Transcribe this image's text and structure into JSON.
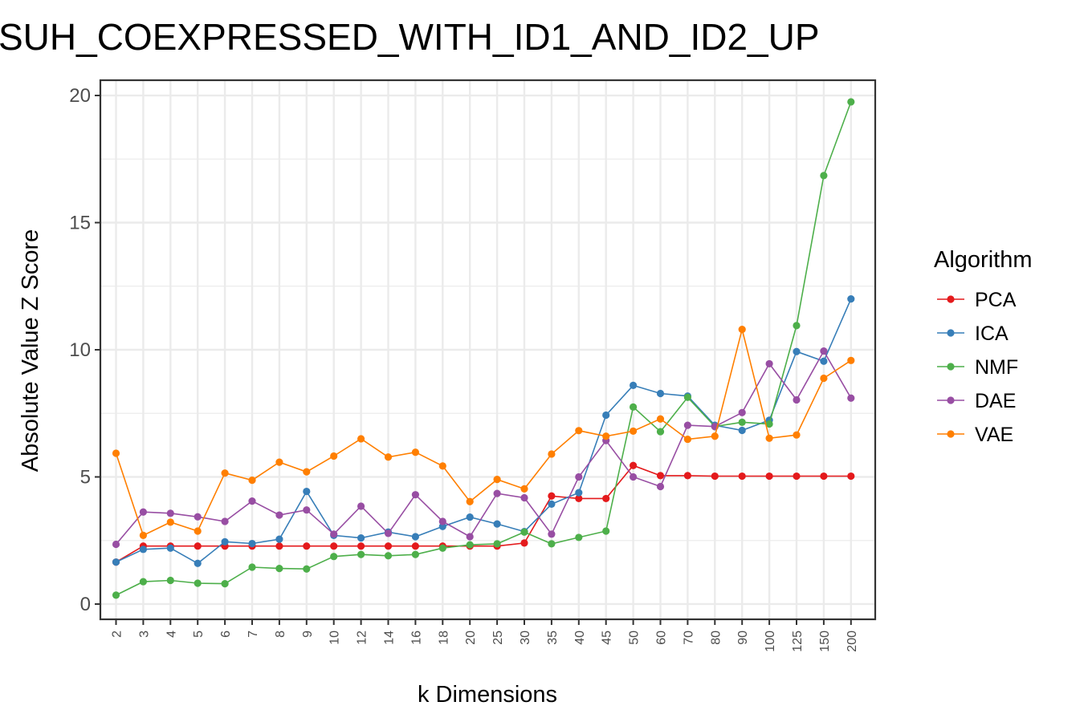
{
  "chart_data": {
    "type": "line",
    "title": "SUH_COEXPRESSED_WITH_ID1_AND_ID2_UP",
    "xlabel": "k Dimensions",
    "ylabel": "Absolute Value Z Score",
    "categories": [
      "2",
      "3",
      "4",
      "5",
      "6",
      "7",
      "8",
      "9",
      "10",
      "12",
      "14",
      "16",
      "18",
      "20",
      "25",
      "30",
      "35",
      "40",
      "45",
      "50",
      "60",
      "70",
      "80",
      "90",
      "100",
      "125",
      "150",
      "200"
    ],
    "ylim": [
      -0.6,
      20.6
    ],
    "yticks": [
      "0",
      "5",
      "10",
      "15",
      "20"
    ],
    "grid": true,
    "legend": {
      "title": "Algorithm",
      "position": "right"
    },
    "series": [
      {
        "name": "PCA",
        "color": "#E41A1C",
        "values": [
          1.65,
          2.28,
          2.28,
          2.28,
          2.28,
          2.28,
          2.28,
          2.28,
          2.28,
          2.28,
          2.28,
          2.28,
          2.28,
          2.28,
          2.28,
          2.4,
          4.25,
          4.15,
          4.15,
          5.45,
          5.05,
          5.05,
          5.03,
          5.03,
          5.03,
          5.03,
          5.03,
          5.03
        ]
      },
      {
        "name": "ICA",
        "color": "#377EB8",
        "values": [
          1.65,
          2.15,
          2.2,
          1.6,
          2.45,
          2.38,
          2.55,
          4.43,
          2.7,
          2.6,
          2.83,
          2.65,
          3.05,
          3.42,
          3.15,
          2.85,
          3.93,
          4.38,
          7.43,
          8.6,
          8.28,
          8.18,
          7.03,
          6.83,
          7.23,
          9.93,
          9.55,
          12.0
        ]
      },
      {
        "name": "NMF",
        "color": "#4DAF4A",
        "values": [
          0.35,
          0.88,
          0.93,
          0.82,
          0.8,
          1.45,
          1.4,
          1.38,
          1.87,
          1.95,
          1.9,
          1.95,
          2.2,
          2.33,
          2.37,
          2.83,
          2.37,
          2.62,
          2.87,
          7.75,
          6.78,
          8.13,
          6.98,
          7.15,
          7.08,
          10.95,
          16.85,
          19.75
        ]
      },
      {
        "name": "DAE",
        "color": "#984EA3",
        "values": [
          2.35,
          3.62,
          3.57,
          3.43,
          3.25,
          4.05,
          3.5,
          3.7,
          2.75,
          3.85,
          2.78,
          4.3,
          3.25,
          2.65,
          4.35,
          4.18,
          2.75,
          5.0,
          6.43,
          5.0,
          4.62,
          7.03,
          6.98,
          7.53,
          9.45,
          8.03,
          9.95,
          8.1
        ]
      },
      {
        "name": "VAE",
        "color": "#FF7F00",
        "values": [
          5.93,
          2.7,
          3.22,
          2.87,
          5.15,
          4.87,
          5.58,
          5.2,
          5.82,
          6.5,
          5.78,
          5.97,
          5.43,
          4.03,
          4.9,
          4.53,
          5.9,
          6.82,
          6.6,
          6.8,
          7.28,
          6.48,
          6.6,
          10.8,
          6.52,
          6.65,
          8.88,
          9.58
        ]
      }
    ]
  }
}
